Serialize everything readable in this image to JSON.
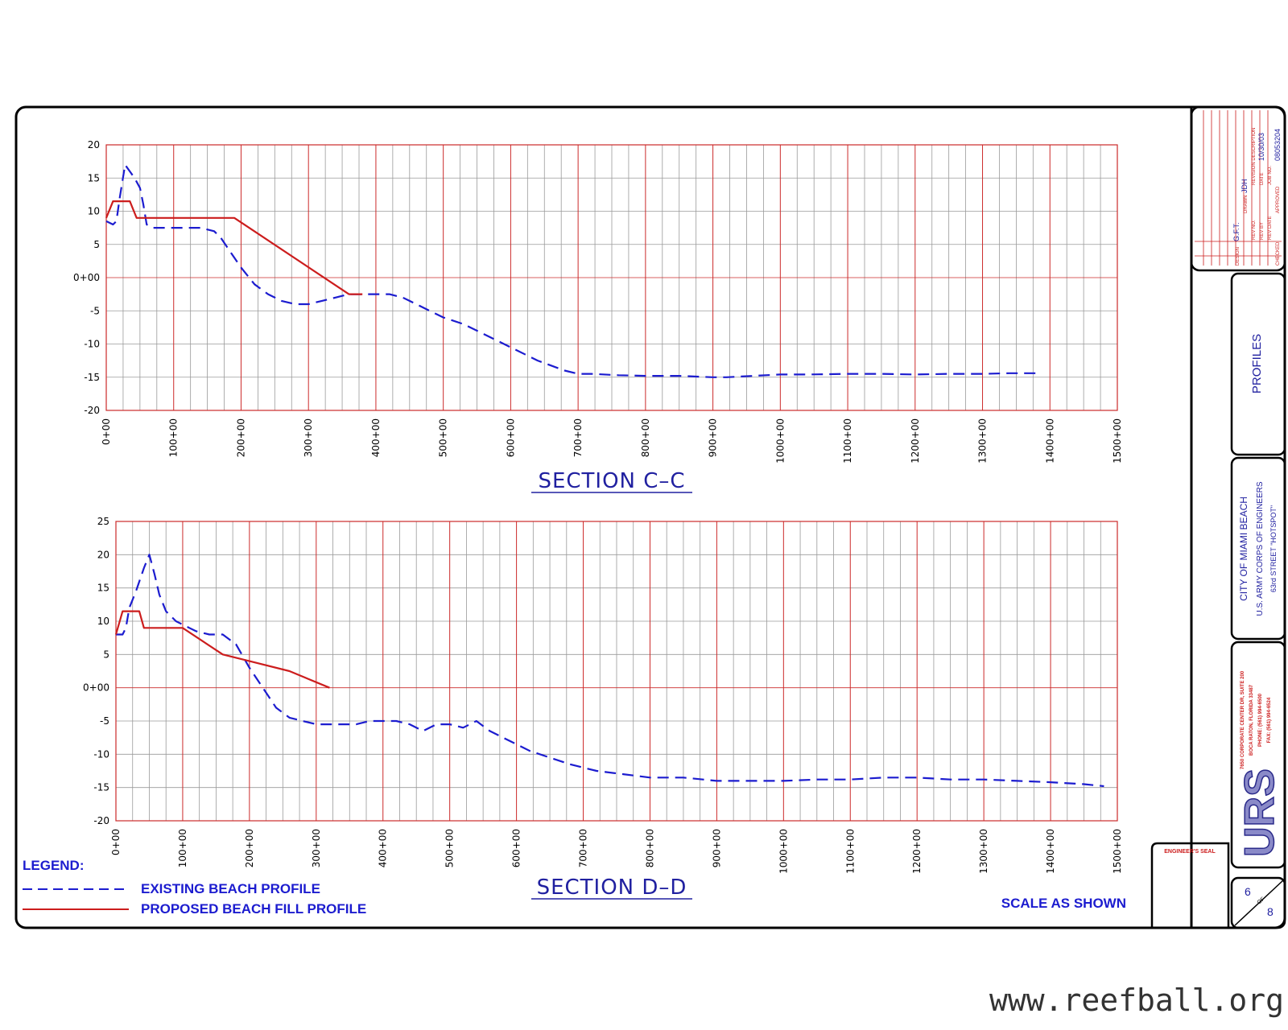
{
  "chart_data": [
    {
      "type": "line",
      "title": "SECTION C–C",
      "x_tick_labels": [
        "0+00",
        "100+00",
        "200+00",
        "300+00",
        "400+00",
        "500+00",
        "600+00",
        "700+00",
        "800+00",
        "900+00",
        "1000+00",
        "1100+00",
        "1200+00",
        "1300+00",
        "1400+00",
        "1500+00"
      ],
      "y_tick_labels": [
        "20",
        "15",
        "10",
        "5",
        "0+00",
        "-5",
        "-10",
        "-15",
        "-20"
      ],
      "xlim": [
        0,
        1500
      ],
      "ylim": [
        -20,
        20
      ],
      "y_ticks": [
        20,
        15,
        10,
        5,
        0,
        -5,
        -10,
        -15,
        -20
      ],
      "grid": true,
      "series": [
        {
          "name": "EXISTING BEACH PROFILE",
          "style": "dashed",
          "color": "#1c1ccf",
          "x": [
            0,
            10,
            15,
            20,
            28,
            35,
            42,
            50,
            55,
            60,
            70,
            80,
            100,
            120,
            140,
            160,
            170,
            180,
            190,
            200,
            220,
            240,
            260,
            280,
            300,
            320,
            340,
            360,
            380,
            400,
            420,
            440,
            460,
            480,
            500,
            530,
            560,
            600,
            640,
            680,
            700,
            720,
            760,
            800,
            850,
            900,
            920,
            960,
            1000,
            1040,
            1100,
            1150,
            1200,
            1250,
            1300,
            1340,
            1380
          ],
          "y": [
            8.5,
            8,
            8.5,
            12,
            17,
            16,
            15,
            13.5,
            11,
            8,
            7.5,
            7.5,
            7.5,
            7.5,
            7.5,
            7,
            6,
            4.5,
            3,
            1.5,
            -1,
            -2.5,
            -3.5,
            -4,
            -4,
            -3.5,
            -3,
            -2.5,
            -2.5,
            -2.5,
            -2.5,
            -3,
            -4,
            -5,
            -6,
            -7,
            -8.5,
            -10.5,
            -12.5,
            -14,
            -14.5,
            -14.5,
            -14.7,
            -14.8,
            -14.8,
            -15,
            -15,
            -14.8,
            -14.6,
            -14.6,
            -14.5,
            -14.5,
            -14.6,
            -14.5,
            -14.5,
            -14.4,
            -14.4
          ]
        },
        {
          "name": "PROPOSED BEACH FILL PROFILE",
          "style": "solid",
          "color": "#cc1d1d",
          "x": [
            0,
            10,
            15,
            20,
            35,
            45,
            50,
            190,
            360,
            380
          ],
          "y": [
            9,
            11.5,
            11.5,
            11.5,
            11.5,
            9,
            9,
            9,
            -2.5,
            -2.5
          ]
        }
      ]
    },
    {
      "type": "line",
      "title": "SECTION D–D",
      "x_tick_labels": [
        "0+00",
        "100+00",
        "200+00",
        "300+00",
        "400+00",
        "500+00",
        "600+00",
        "700+00",
        "800+00",
        "900+00",
        "1000+00",
        "1100+00",
        "1200+00",
        "1300+00",
        "1400+00",
        "1500+00"
      ],
      "y_tick_labels": [
        "25",
        "20",
        "15",
        "10",
        "5",
        "0+00",
        "-5",
        "-10",
        "-15",
        "-20"
      ],
      "xlim": [
        0,
        1500
      ],
      "ylim": [
        -20,
        25
      ],
      "y_ticks": [
        25,
        20,
        15,
        10,
        5,
        0,
        -5,
        -10,
        -15,
        -20
      ],
      "grid": true,
      "series": [
        {
          "name": "EXISTING BEACH PROFILE",
          "style": "dashed",
          "color": "#1c1ccf",
          "x": [
            0,
            10,
            15,
            20,
            30,
            42,
            50,
            58,
            65,
            75,
            90,
            110,
            120,
            140,
            150,
            160,
            180,
            200,
            220,
            240,
            260,
            280,
            300,
            320,
            340,
            360,
            380,
            400,
            420,
            440,
            460,
            480,
            500,
            520,
            540,
            560,
            580,
            600,
            620,
            650,
            680,
            700,
            720,
            760,
            800,
            850,
            900,
            950,
            1000,
            1050,
            1100,
            1150,
            1200,
            1250,
            1300,
            1350,
            1400,
            1450,
            1480
          ],
          "y": [
            8,
            8,
            9,
            12,
            14.5,
            18,
            20,
            17,
            14,
            11.5,
            10,
            9,
            8.5,
            8,
            8,
            8,
            6.5,
            3,
            0,
            -3,
            -4.5,
            -5,
            -5.5,
            -5.5,
            -5.5,
            -5.5,
            -5,
            -5,
            -5,
            -5.5,
            -6.5,
            -5.5,
            -5.5,
            -6,
            -5,
            -6.5,
            -7.5,
            -8.5,
            -9.5,
            -10.5,
            -11.5,
            -12,
            -12.5,
            -13,
            -13.5,
            -13.5,
            -14,
            -14,
            -14,
            -13.8,
            -13.8,
            -13.5,
            -13.5,
            -13.8,
            -13.8,
            -14,
            -14.2,
            -14.5,
            -14.8
          ]
        },
        {
          "name": "PROPOSED BEACH FILL PROFILE",
          "style": "solid",
          "color": "#cc1d1d",
          "x": [
            0,
            10,
            15,
            20,
            35,
            42,
            50,
            100,
            160,
            200,
            260,
            320
          ],
          "y": [
            8,
            11.5,
            11.5,
            11.5,
            11.5,
            9,
            9,
            9,
            5,
            4,
            2.5,
            0
          ]
        }
      ]
    }
  ],
  "legend": {
    "heading": "LEGEND:",
    "existing_label": "EXISTING BEACH PROFILE",
    "proposed_label": "PROPOSED BEACH FILL PROFILE"
  },
  "scale_note": "SCALE AS SHOWN",
  "title_block": {
    "drawing_title": "PROFILES",
    "project_line1": "CITY OF MIAMI BEACH",
    "project_line2": "U.S. ARMY CORPS OF ENGINEERS",
    "project_line3": "63rd STREET \"HOTSPOT\"",
    "address_line1": "7650 CORPORATE CENTER DR, SUITE 200",
    "address_line2": "BOCA RATON, FLORIDA 33487",
    "address_line3": "PHONE: (561) 994-6500",
    "address_line4": "FAX: (561) 994-6524",
    "company": "URS",
    "seal_label": "ENGINEER'S SEAL",
    "sheet_number": "6",
    "sheet_of": "OF",
    "sheet_total": "8",
    "revision_description_label": "REVISION DESCRIPTION",
    "date_label": "DATE",
    "date_value": "10/30/03",
    "job_no_label": "JOB NO.",
    "job_no_value": "08053204",
    "drawn_label": "DRAWN",
    "drawn_value": "JDH",
    "design_label": "DESIGN",
    "design_value": "G.F.T.",
    "checked_label": "CHECKED",
    "approved_label": "APPROVED",
    "rev_no_label": "REV NO.",
    "rev_by_label": "REV BY",
    "rev_date_label": "REV DATE"
  },
  "watermark": "www.reefball.org",
  "colors": {
    "existing": "#1c1ccf",
    "proposed": "#cc1d1d",
    "grid_minor": "#9a9a9a",
    "grid_major": "#cc2a2a",
    "title": "#2020a0"
  }
}
